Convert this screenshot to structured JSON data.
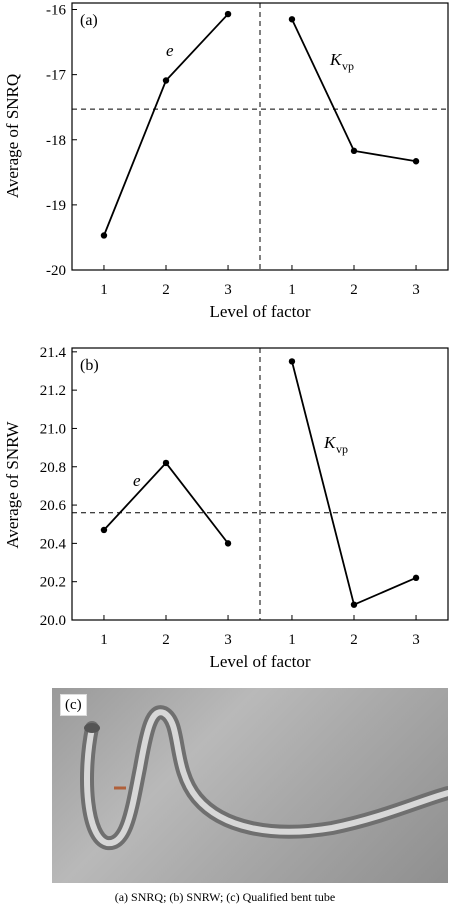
{
  "chart_data": [
    {
      "type": "line",
      "panel_label": "(a)",
      "ylabel": "Average of SNRQ",
      "xlabel": "Level of factor",
      "ylim": [
        -20,
        -15.9
      ],
      "yticks": [
        "-16",
        "-17",
        "-18",
        "-19",
        "-20"
      ],
      "ytick_values": [
        -16,
        -17,
        -18,
        -19,
        -20
      ],
      "reference_line": -17.53,
      "series": [
        {
          "name": "e",
          "name_sub": "",
          "categories": [
            "1",
            "2",
            "3"
          ],
          "values": [
            -19.47,
            -17.09,
            -16.07
          ]
        },
        {
          "name": "K",
          "name_sub": "vp",
          "categories": [
            "1",
            "2",
            "3"
          ],
          "values": [
            -16.15,
            -18.17,
            -18.33
          ]
        }
      ]
    },
    {
      "type": "line",
      "panel_label": "(b)",
      "ylabel": "Average of SNRW",
      "xlabel": "Level of factor",
      "ylim": [
        20.0,
        21.42
      ],
      "yticks": [
        "21.4",
        "21.2",
        "21.0",
        "20.8",
        "20.6",
        "20.4",
        "20.2",
        "20.0"
      ],
      "ytick_values": [
        21.4,
        21.2,
        21.0,
        20.8,
        20.6,
        20.4,
        20.2,
        20.0
      ],
      "reference_line": 20.56,
      "series": [
        {
          "name": "e",
          "name_sub": "",
          "categories": [
            "1",
            "2",
            "3"
          ],
          "values": [
            20.47,
            20.82,
            20.4
          ]
        },
        {
          "name": "K",
          "name_sub": "vp",
          "categories": [
            "1",
            "2",
            "3"
          ],
          "values": [
            21.35,
            20.08,
            20.22
          ]
        }
      ]
    }
  ],
  "photo": {
    "label": "(c)"
  },
  "caption": "(a) SNRQ; (b) SNRW; (c) Qualified bent tube"
}
